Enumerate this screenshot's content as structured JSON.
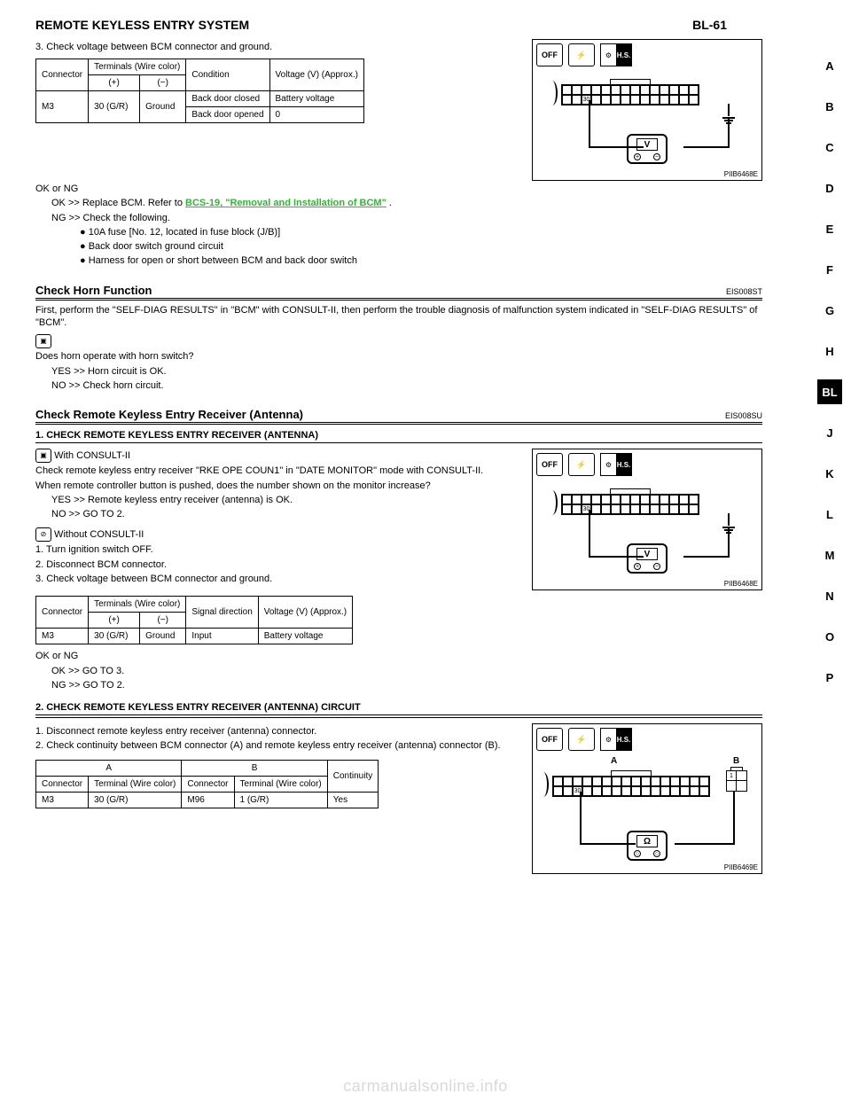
{
  "page": {
    "header_title": "REMOTE KEYLESS ENTRY SYSTEM",
    "page_number": "BL-61"
  },
  "side_tabs": [
    "A",
    "B",
    "C",
    "D",
    "E",
    "F",
    "G",
    "H",
    "BL",
    "J",
    "K",
    "L",
    "M",
    "N",
    "O",
    "P"
  ],
  "active_tab": "BL",
  "figures": {
    "fig1": {
      "ref": "PIIB6468E",
      "meter_symbol": "V",
      "pin_label": "30",
      "hs_label": "H.S.",
      "cols": 14
    },
    "fig2": {
      "ref": "PIIB6468E",
      "meter_symbol": "V",
      "pin_label": "30",
      "hs_label": "H.S.",
      "cols": 14
    },
    "fig3": {
      "ref": "PIIB6469E",
      "meter_symbol": "Ω",
      "pin_label": "30",
      "hs_label": "H.S.",
      "a_label": "A",
      "b_label": "B",
      "b_pin": "1",
      "cols": 16
    }
  },
  "top_block": {
    "lines": [
      "3. Check voltage between BCM connector and ground.",
      ""
    ],
    "table": {
      "rows": [
        [
          "Connector",
          "Terminals\n(Wire color)",
          "Condition",
          "Voltage (V)\n(Approx.)"
        ],
        [
          "",
          "(+)",
          "(−)",
          "",
          ""
        ],
        [
          "M3",
          "30 (G/R)",
          "Ground",
          "Back door closed",
          "Battery voltage"
        ],
        [
          "",
          "",
          "",
          "Back door opened",
          "0"
        ]
      ]
    },
    "ok_ng": "OK or NG",
    "ok_line": "OK >> Replace BCM. Refer to ",
    "ok_link": "BCS-19, \"Removal and Installation of BCM\"",
    "ok_post": " .",
    "ng_line": "NG >> Check the following.",
    "ng_bullets_fuse": "● 10A fuse [No. 12, located in fuse block (J/B)]",
    "ng_bullets": [
      "● Back door switch ground circuit",
      "● Harness for open or short between BCM and back door switch"
    ]
  },
  "horn_check": {
    "title": "Check Horn Function",
    "code": "EIS008ST",
    "body": [
      "First, perform the \"SELF-DIAG RESULTS\" in \"BCM\" with CONSULT-II, then perform the trouble diagnosis of malfunction system indicated in \"SELF-DIAG RESULTS\" of \"BCM\".",
      "Does horn operate with horn switch?",
      "YES >> Horn circuit is OK.",
      "NO  >> Check horn circuit."
    ]
  },
  "remote_antenna": {
    "title": "Check Remote Keyless Entry Receiver (Antenna)",
    "code": "EIS008SU",
    "step1": {
      "heading": "1. CHECK REMOTE KEYLESS ENTRY RECEIVER (ANTENNA)",
      "consult_with": "With CONSULT-II",
      "lines": [
        "Check remote keyless entry receiver \"RKE OPE COUN1\" in \"DATE MONITOR\" mode with CONSULT-II.",
        "When remote controller button is pushed, does the number shown on the monitor increase?",
        "YES >> Remote keyless entry receiver (antenna) is OK.",
        "NO  >> GO TO 2.",
        " Without CONSULT-II",
        "1. Turn ignition switch OFF.",
        "2. Disconnect BCM connector.",
        "3. Check voltage between BCM connector and ground."
      ],
      "table": {
        "rows": [
          [
            "Connector",
            "Terminals\n(Wire color)",
            "",
            "Signal\ndirection",
            "Voltage (V)\n(Approx.)"
          ],
          [
            "",
            "(+)",
            "(−)",
            "",
            ""
          ],
          [
            "M3",
            "30 (G/R)",
            "Ground",
            "Input",
            "Battery voltage"
          ]
        ]
      },
      "ok_ng": "OK or NG",
      "ok": "OK >> GO TO 3.",
      "ng": "NG >> GO TO 2."
    },
    "step2": {
      "heading": "2. CHECK REMOTE KEYLESS ENTRY RECEIVER (ANTENNA) CIRCUIT",
      "lines": [
        "1. Disconnect remote keyless entry receiver (antenna) connector.",
        "2. Check continuity between BCM connector (A) and remote keyless entry receiver (antenna) connector (B)."
      ],
      "table": {
        "rows": [
          [
            "A",
            "",
            "B",
            "",
            "Continuity"
          ],
          [
            "Connector",
            "Terminal\n(Wire color)",
            "Connector",
            "Terminal\n(Wire color)",
            ""
          ],
          [
            "M3",
            "30 (G/R)",
            "M96",
            "1 (G/R)",
            "Yes"
          ]
        ]
      }
    }
  },
  "watermark": "carmanualsonline.info",
  "colors": {
    "link_green": "#2fb82f",
    "watermark": "#d9d9d9"
  }
}
